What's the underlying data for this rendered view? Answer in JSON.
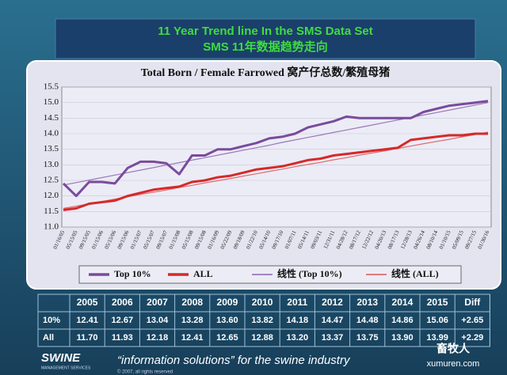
{
  "header": {
    "title": "11 Year Trend line In the SMS Data Set",
    "subtitle": "SMS 11年数据趋势走向"
  },
  "chart_data": {
    "type": "line",
    "title": "Total Born / Female Farrowed 窝产仔总数/繁殖母猪",
    "categories": [
      "01/16/05",
      "05/15/05",
      "09/15/05",
      "01/15/06",
      "05/15/06",
      "09/15/06",
      "01/15/07",
      "05/15/07",
      "09/15/07",
      "01/15/08",
      "05/15/08",
      "09/15/08",
      "01/16/09",
      "05/22/09",
      "09/18/09",
      "01/22/10",
      "05/14/10",
      "09/17/10",
      "01/07/11",
      "05/14/11",
      "09/03/11",
      "12/31/11",
      "04/28/12",
      "08/17/12",
      "12/22/12",
      "04/20/13",
      "08/17/13",
      "12/28/13",
      "04/26/14",
      "08/10/14",
      "01/10/15",
      "05/09/15",
      "09/27/15",
      "01/30/16"
    ],
    "series": [
      {
        "name": "Top 10%",
        "color": "#7a4b9c",
        "width": 3,
        "values": [
          12.4,
          12.0,
          12.45,
          12.45,
          12.4,
          12.9,
          13.1,
          13.1,
          13.05,
          12.7,
          13.3,
          13.3,
          13.5,
          13.5,
          13.6,
          13.7,
          13.85,
          13.9,
          14.0,
          14.2,
          14.3,
          14.4,
          14.55,
          14.5,
          14.5,
          14.5,
          14.5,
          14.5,
          14.7,
          14.8,
          14.9,
          14.95,
          15.0,
          15.05
        ]
      },
      {
        "name": "ALL",
        "color": "#d42a2a",
        "width": 3,
        "values": [
          11.55,
          11.6,
          11.75,
          11.8,
          11.85,
          12.0,
          12.1,
          12.2,
          12.25,
          12.3,
          12.45,
          12.5,
          12.6,
          12.65,
          12.75,
          12.85,
          12.9,
          12.95,
          13.05,
          13.15,
          13.2,
          13.3,
          13.35,
          13.4,
          13.45,
          13.5,
          13.55,
          13.8,
          13.85,
          13.9,
          13.95,
          13.95,
          14.0,
          14.0
        ]
      },
      {
        "name": "线性 (Top 10%)",
        "color": "#9a78b8",
        "width": 1.2,
        "values": [
          12.35,
          12.43,
          12.51,
          12.59,
          12.67,
          12.75,
          12.83,
          12.91,
          12.99,
          13.07,
          13.15,
          13.23,
          13.31,
          13.39,
          13.47,
          13.55,
          13.63,
          13.72,
          13.8,
          13.88,
          13.96,
          14.04,
          14.12,
          14.2,
          14.28,
          14.36,
          14.44,
          14.52,
          14.6,
          14.68,
          14.76,
          14.84,
          14.92,
          15.0
        ]
      },
      {
        "name": "线性 (ALL)",
        "color": "#e06a6a",
        "width": 1.2,
        "values": [
          11.6,
          11.67,
          11.75,
          11.82,
          11.9,
          11.97,
          12.05,
          12.12,
          12.19,
          12.27,
          12.34,
          12.42,
          12.49,
          12.56,
          12.64,
          12.71,
          12.79,
          12.86,
          12.94,
          13.01,
          13.08,
          13.16,
          13.23,
          13.31,
          13.38,
          13.45,
          13.53,
          13.6,
          13.68,
          13.75,
          13.82,
          13.9,
          13.97,
          14.05
        ]
      }
    ],
    "ylim": [
      11,
      15.5
    ],
    "yticks": [
      {
        "value": 11,
        "label": "11.0"
      },
      {
        "value": 11.5,
        "label": "11.5"
      },
      {
        "value": 12,
        "label": "12.0"
      },
      {
        "value": 12.5,
        "label": "12.5"
      },
      {
        "value": 13,
        "label": "13.0"
      },
      {
        "value": 13.5,
        "label": "13.5"
      },
      {
        "value": 14,
        "label": "14.0"
      },
      {
        "value": 14.5,
        "label": "14.5"
      },
      {
        "value": 15,
        "label": "15.0"
      },
      {
        "value": 15.5,
        "label": "15.5"
      }
    ],
    "grid": true
  },
  "table": {
    "header": [
      "2005",
      "2006",
      "2007",
      "2008",
      "2009",
      "2010",
      "2011",
      "2012",
      "2013",
      "2014",
      "2015",
      "Diff"
    ],
    "rows": [
      [
        "10%",
        "12.41",
        "12.67",
        "13.04",
        "13.28",
        "13.60",
        "13.82",
        "14.18",
        "14.47",
        "14.48",
        "14.86",
        "15.06",
        "+2.65"
      ],
      [
        "All",
        "11.70",
        "11.93",
        "12.18",
        "12.41",
        "12.65",
        "12.88",
        "13.20",
        "13.37",
        "13.75",
        "13.90",
        "13.99",
        "+2.29"
      ]
    ]
  },
  "footer": {
    "logo": "SWINE",
    "logo_sub": "MANAGEMENT SERVICES",
    "tagline": "“information solutions” for the swine industry",
    "copyright": "© 2007, all rights reserved",
    "watermark": "畜牧人",
    "watermark_url": "xumuren.com"
  }
}
